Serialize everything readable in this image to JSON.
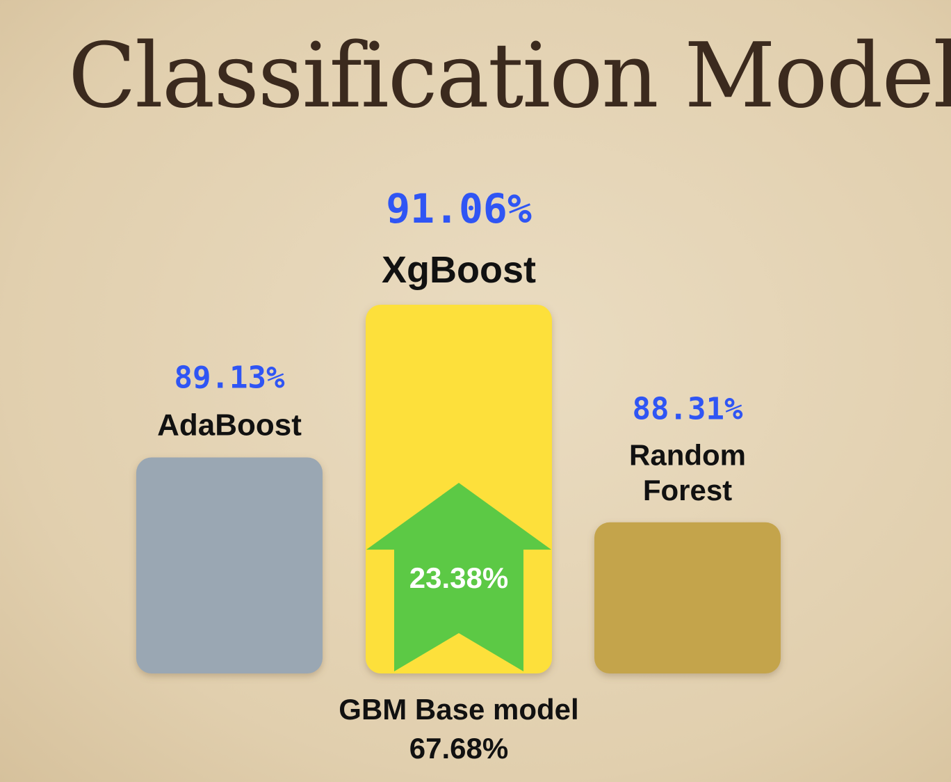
{
  "title": "Classification Model",
  "colors": {
    "background": "#e6d6b8",
    "title": "#3b2a1e",
    "value_text": "#2f55f4",
    "label_text": "#111111",
    "arrow": "#5cc945",
    "arrow_text": "#ffffff"
  },
  "chart_data": {
    "type": "bar",
    "title": "Classification Model",
    "xlabel": "",
    "ylabel": "",
    "categories": [
      "AdaBoost",
      "XgBoost",
      "Random Forest"
    ],
    "label_lines": [
      [
        "AdaBoost"
      ],
      [
        "XgBoost"
      ],
      [
        "Random",
        "Forest"
      ]
    ],
    "values": [
      89.13,
      91.06,
      88.31
    ],
    "value_labels": [
      "89.13%",
      "91.06%",
      "88.31%"
    ],
    "colors": [
      "#9aa7b3",
      "#fde03b",
      "#c4a44c"
    ],
    "grid": false,
    "legend": "none",
    "annotations": {
      "improvement": {
        "text": "23.38%",
        "attached_to": "XgBoost"
      },
      "base_model": {
        "label": "GBM Base model",
        "value_text": "67.68%",
        "value": 67.68
      }
    }
  }
}
